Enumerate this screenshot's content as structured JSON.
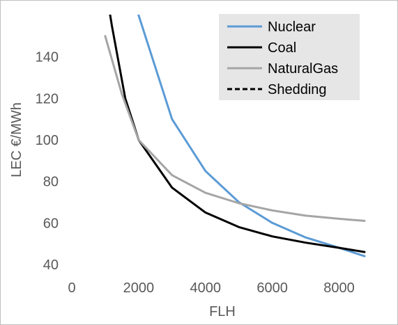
{
  "chart_data": {
    "type": "line",
    "xlabel": "FLH",
    "ylabel": "LEC €/MWh",
    "xlim": [
      0,
      8760
    ],
    "ylim": [
      40,
      160
    ],
    "x_ticks": [
      0,
      2000,
      4000,
      6000,
      8000
    ],
    "y_ticks": [
      40,
      60,
      80,
      100,
      120,
      140
    ],
    "x_tick_labels": [
      "0",
      "2000",
      "4000",
      "6000",
      "8000"
    ],
    "y_tick_labels": [
      "40",
      "60",
      "80",
      "100",
      "120",
      "140"
    ],
    "grid": false,
    "legend_position": "top-right",
    "series": [
      {
        "name": "Nuclear",
        "color": "#5b9bd5",
        "dash": "solid",
        "points": [
          [
            1800,
            172
          ],
          [
            2000,
            160
          ],
          [
            3000,
            110
          ],
          [
            4000,
            85
          ],
          [
            5000,
            70
          ],
          [
            6000,
            60
          ],
          [
            7000,
            53
          ],
          [
            8000,
            48
          ],
          [
            8760,
            44
          ]
        ]
      },
      {
        "name": "Coal",
        "color": "#000000",
        "dash": "solid",
        "points": [
          [
            1000,
            175
          ],
          [
            1200,
            155
          ],
          [
            1600,
            120
          ],
          [
            2000,
            100
          ],
          [
            3000,
            77
          ],
          [
            4000,
            65
          ],
          [
            5000,
            58
          ],
          [
            6000,
            53.5
          ],
          [
            7000,
            50.5
          ],
          [
            8000,
            48
          ],
          [
            8760,
            46
          ]
        ]
      },
      {
        "name": "NaturalGas",
        "color": "#a5a5a5",
        "dash": "solid",
        "points": [
          [
            1000,
            150
          ],
          [
            1500,
            122
          ],
          [
            2000,
            100
          ],
          [
            3000,
            83
          ],
          [
            4000,
            74.5
          ],
          [
            5000,
            69.5
          ],
          [
            6000,
            66
          ],
          [
            7000,
            63.5
          ],
          [
            8000,
            62
          ],
          [
            8760,
            61
          ]
        ]
      },
      {
        "name": "Shedding",
        "color": "#000000",
        "dash": "dashed",
        "points": []
      }
    ]
  }
}
